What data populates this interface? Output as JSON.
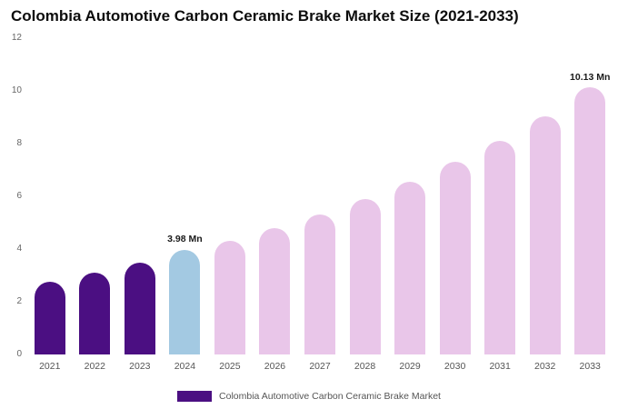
{
  "page": {
    "title": "Colombia Automotive Carbon Ceramic Brake Market Size (2021-2033)"
  },
  "legend": {
    "label": "Colombia Automotive Carbon Ceramic Brake Market",
    "swatch_color": "#4b0f82"
  },
  "chart_data": {
    "type": "bar",
    "title": "Colombia Automotive Carbon Ceramic Brake Market Size (2021-2033)",
    "categories": [
      "2021",
      "2022",
      "2023",
      "2024",
      "2025",
      "2026",
      "2027",
      "2028",
      "2029",
      "2030",
      "2031",
      "2032",
      "2033"
    ],
    "values": [
      2.75,
      3.12,
      3.47,
      3.98,
      4.32,
      4.78,
      5.32,
      5.9,
      6.55,
      7.3,
      8.12,
      9.05,
      10.13
    ],
    "unit": "Mn",
    "xlabel": "",
    "ylabel": "",
    "ylim": [
      0,
      12
    ],
    "yticks": [
      0,
      2,
      4,
      6,
      8,
      10,
      12
    ],
    "grid": false,
    "legend_position": "bottom",
    "bar_colors": [
      "#4b0f82",
      "#4b0f82",
      "#4b0f82",
      "#a3c9e2",
      "#e9c6e9",
      "#e9c6e9",
      "#e9c6e9",
      "#e9c6e9",
      "#e9c6e9",
      "#e9c6e9",
      "#e9c6e9",
      "#e9c6e9",
      "#e9c6e9"
    ],
    "annotations": [
      {
        "category": "2024",
        "text": "3.98 Mn"
      },
      {
        "category": "2033",
        "text": "10.13 Mn"
      }
    ]
  }
}
